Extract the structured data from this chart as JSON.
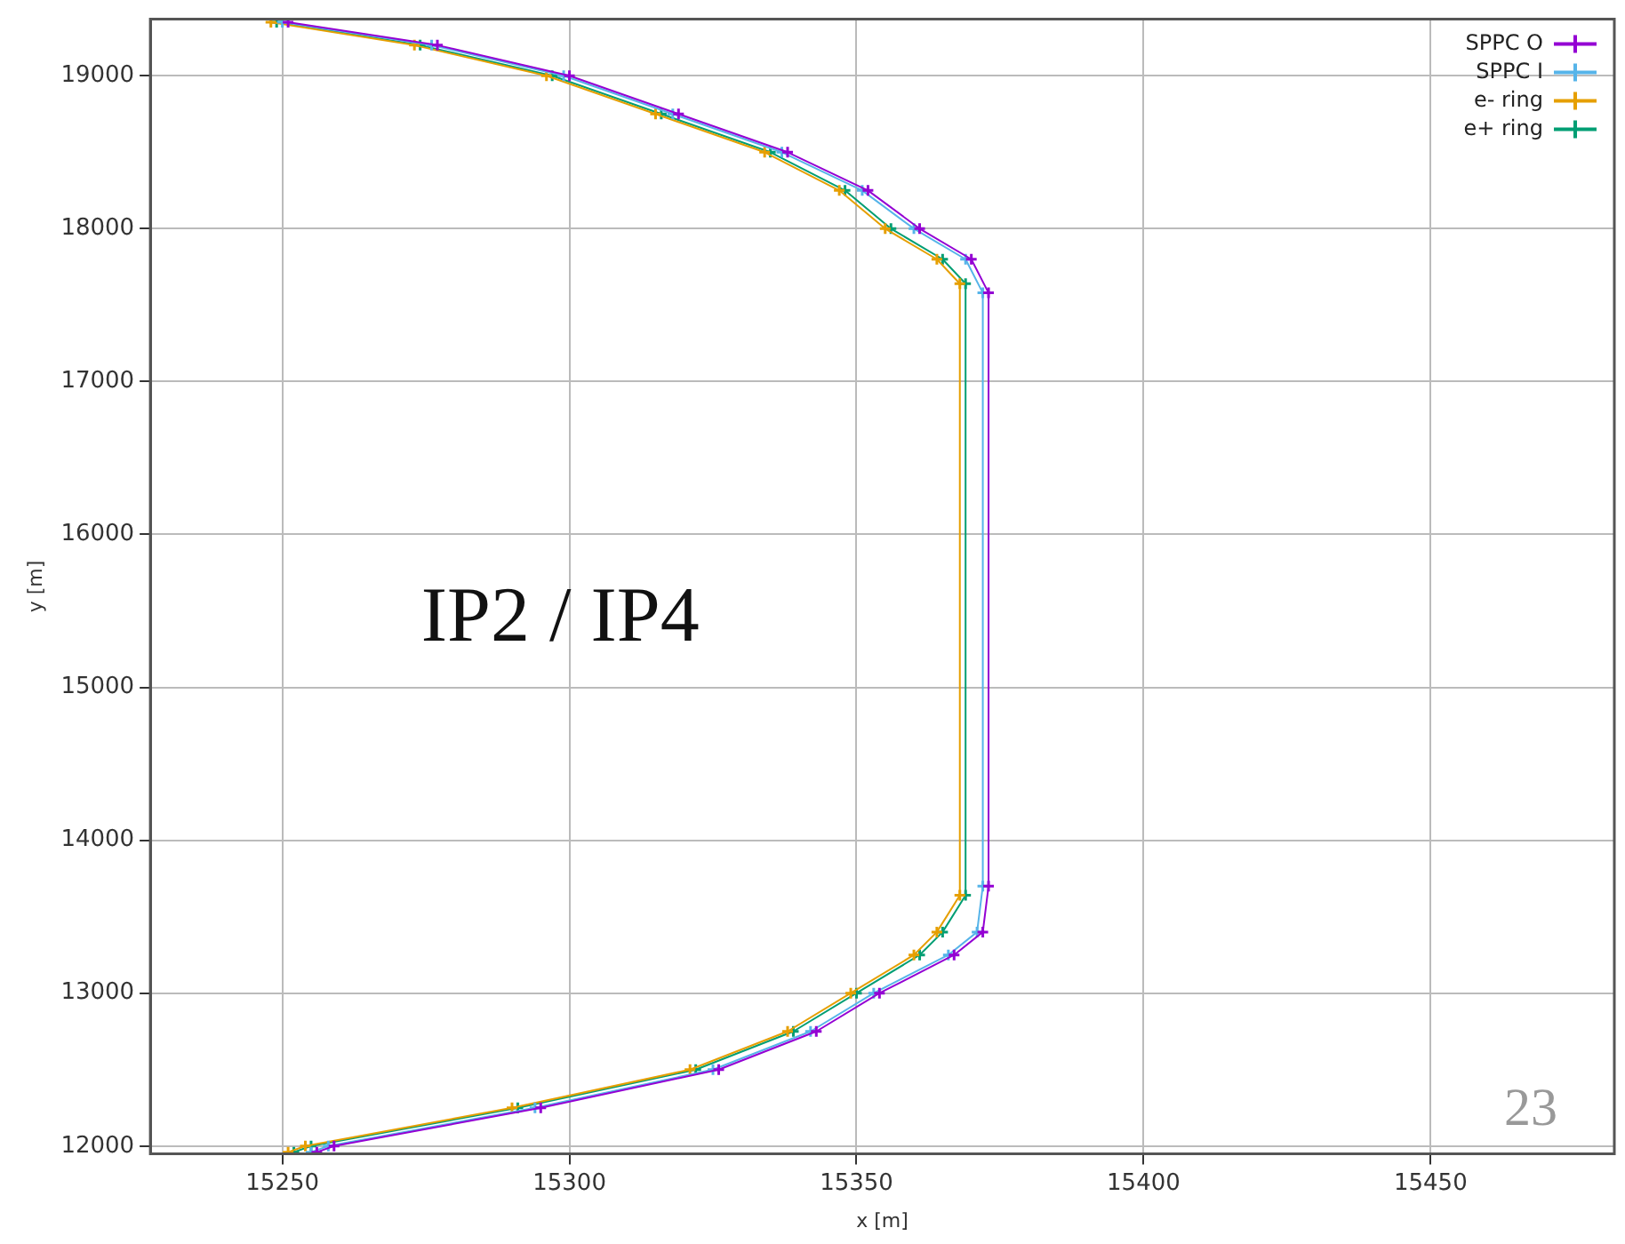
{
  "chart_data": {
    "type": "line",
    "xlabel": "x [m]",
    "ylabel": "y [m]",
    "xlim": [
      15227,
      15482
    ],
    "ylim": [
      11950,
      19370
    ],
    "xticks": [
      15250,
      15300,
      15350,
      15400,
      15450
    ],
    "yticks": [
      12000,
      13000,
      14000,
      15000,
      16000,
      17000,
      18000,
      19000
    ],
    "grid": true,
    "legend": "top right",
    "marker": "cross",
    "line_style": "solid",
    "annotations": [
      "IP2 / IP4",
      "23"
    ],
    "series": [
      {
        "name": "SPPC O",
        "color": "#9400d3",
        "x": [
          15251,
          15277,
          15300,
          15319,
          15338,
          15352,
          15361,
          15370,
          15373,
          15373,
          15372,
          15367,
          15354,
          15343,
          15326,
          15295,
          15259,
          15256
        ],
        "values": [
          19350,
          19200,
          19000,
          18750,
          18500,
          18250,
          18000,
          17800,
          17580,
          13700,
          13400,
          13250,
          13000,
          12750,
          12500,
          12250,
          12000,
          11960
        ]
      },
      {
        "name": "SPPC I",
        "color": "#56b4e9",
        "x": [
          15250,
          15276,
          15299,
          15318,
          15337,
          15351,
          15360,
          15369,
          15372,
          15372,
          15371,
          15366,
          15353,
          15342,
          15325,
          15294,
          15258,
          15255
        ],
        "values": [
          19350,
          19200,
          19000,
          18750,
          18500,
          18250,
          18000,
          17800,
          17580,
          13700,
          13400,
          13250,
          13000,
          12750,
          12500,
          12250,
          12000,
          11960
        ]
      },
      {
        "name": "e- ring",
        "color": "#e69f00",
        "x": [
          15248,
          15273,
          15296,
          15315,
          15334,
          15347,
          15355,
          15364,
          15368,
          15368,
          15364,
          15360,
          15349,
          15338,
          15321,
          15290,
          15254,
          15251
        ],
        "values": [
          19350,
          19200,
          19000,
          18750,
          18500,
          18250,
          18000,
          17800,
          17640,
          13640,
          13400,
          13250,
          13000,
          12750,
          12500,
          12250,
          12000,
          11960
        ]
      },
      {
        "name": "e+ ring",
        "color": "#009e73",
        "x": [
          15249,
          15274,
          15297,
          15316,
          15335,
          15348,
          15356,
          15365,
          15369,
          15369,
          15365,
          15361,
          15350,
          15339,
          15322,
          15291,
          15255,
          15252
        ],
        "values": [
          19350,
          19200,
          19000,
          18750,
          18500,
          18250,
          18000,
          17800,
          17640,
          13640,
          13400,
          13250,
          13000,
          12750,
          12500,
          12250,
          12000,
          11960
        ]
      }
    ]
  }
}
